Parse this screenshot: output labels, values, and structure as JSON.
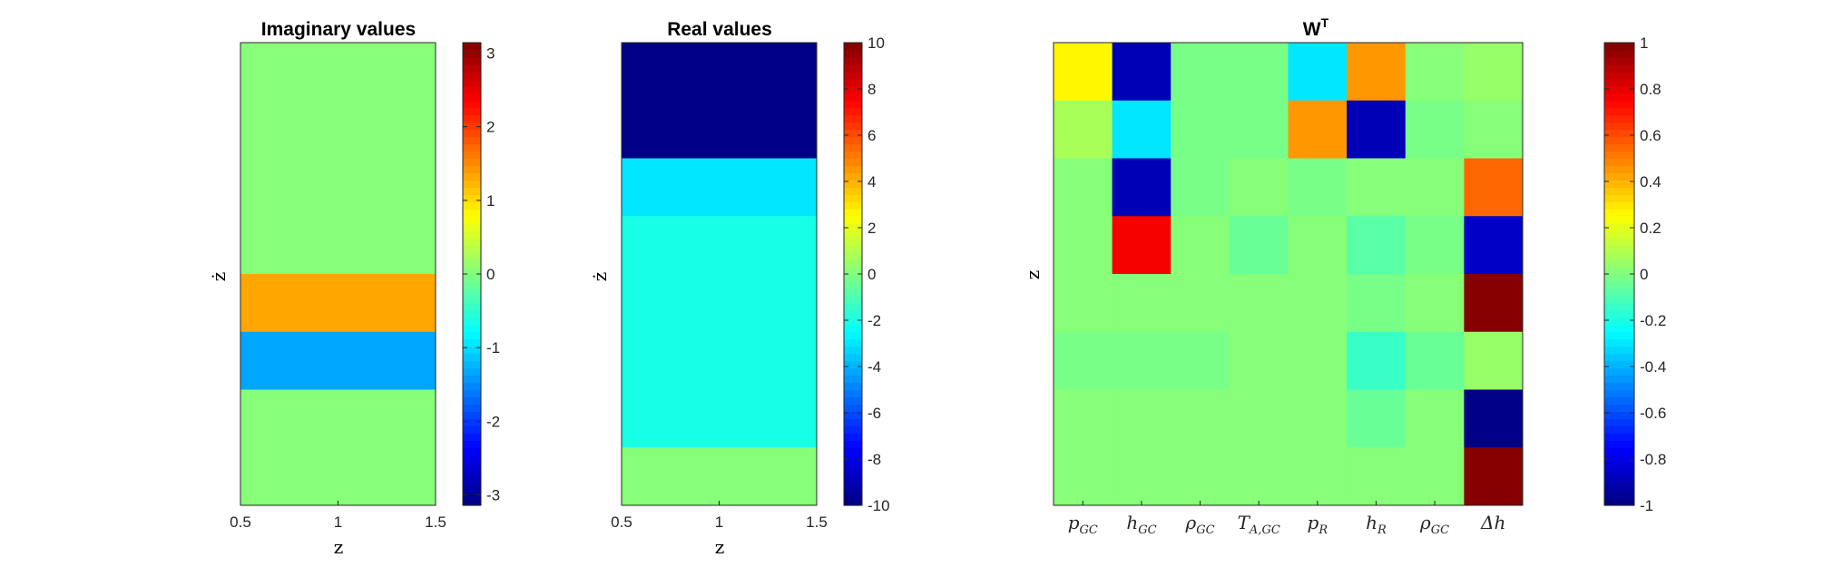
{
  "chart_data": [
    {
      "type": "heatmap",
      "title": "Imaginary values",
      "xlabel": "z",
      "ylabel": "ż",
      "xlim": [
        0.5,
        1.5
      ],
      "x_ticks": [
        "0.5",
        "1",
        "1.5"
      ],
      "n_rows": 8,
      "values": [
        0,
        0,
        0,
        0,
        1.3,
        -1.3,
        0,
        0
      ],
      "colorbar": {
        "limits": [
          -3.1416,
          3.1416
        ],
        "ticks": [
          -3,
          -2,
          -1,
          0,
          1,
          2,
          3
        ],
        "tick_labels": [
          "-3",
          "-2",
          "-1",
          "0",
          "1",
          "2",
          "3"
        ]
      },
      "colormap": "jet"
    },
    {
      "type": "heatmap",
      "title": "Real values",
      "xlabel": "z",
      "ylabel": "ż",
      "xlim": [
        0.5,
        1.5
      ],
      "x_ticks": [
        "0.5",
        "1",
        "1.5"
      ],
      "n_rows": 8,
      "values": [
        -10,
        -10,
        -3,
        -2,
        -2,
        -2,
        -2,
        0
      ],
      "colorbar": {
        "limits": [
          -10,
          10
        ],
        "ticks": [
          -10,
          -8,
          -6,
          -4,
          -2,
          0,
          2,
          4,
          6,
          8,
          10
        ],
        "tick_labels": [
          "-10",
          "-8",
          "-6",
          "-4",
          "-2",
          "0",
          "2",
          "4",
          "6",
          "8",
          "10"
        ]
      },
      "colormap": "jet"
    },
    {
      "type": "heatmap",
      "title": "W",
      "title_superscript": "T",
      "xlabel": "",
      "ylabel": "z",
      "x_tick_labels": [
        {
          "base": "p",
          "sub": "GC"
        },
        {
          "base": "h",
          "sub": "GC"
        },
        {
          "base": "ρ",
          "sub": "GC"
        },
        {
          "base": "T",
          "sub": "A,GC"
        },
        {
          "base": "p",
          "sub": "R"
        },
        {
          "base": "h",
          "sub": "R"
        },
        {
          "base": "ρ",
          "sub": "GC"
        },
        {
          "base": "Δh",
          "sub": ""
        }
      ],
      "matrix": [
        [
          0.25,
          -0.9,
          -0.02,
          -0.02,
          -0.3,
          0.45,
          0.0,
          0.05
        ],
        [
          0.07,
          -0.3,
          -0.02,
          -0.02,
          0.45,
          -0.9,
          -0.03,
          0.0
        ],
        [
          0.0,
          -0.9,
          -0.03,
          0.0,
          -0.03,
          0.0,
          0.0,
          0.55
        ],
        [
          0.0,
          0.75,
          0.0,
          -0.05,
          0.0,
          -0.08,
          -0.03,
          -0.85
        ],
        [
          0.0,
          0.0,
          0.0,
          0.0,
          0.0,
          -0.03,
          0.0,
          1.0
        ],
        [
          -0.03,
          -0.03,
          -0.03,
          0.0,
          0.0,
          -0.14,
          -0.04,
          0.05
        ],
        [
          0.0,
          0.0,
          0.0,
          0.0,
          0.0,
          -0.04,
          0.0,
          -1.0
        ],
        [
          0.0,
          0.0,
          0.0,
          0.0,
          0.0,
          0.0,
          0.0,
          1.0
        ]
      ],
      "colorbar": {
        "limits": [
          -1,
          1
        ],
        "ticks": [
          -1,
          -0.8,
          -0.6,
          -0.4,
          -0.2,
          0,
          0.2,
          0.4,
          0.6,
          0.8,
          1
        ],
        "tick_labels": [
          "-1",
          "-0.8",
          "-0.6",
          "-0.4",
          "-0.2",
          "0",
          "0.2",
          "0.4",
          "0.6",
          "0.8",
          "1"
        ]
      },
      "colormap": "jet"
    }
  ]
}
